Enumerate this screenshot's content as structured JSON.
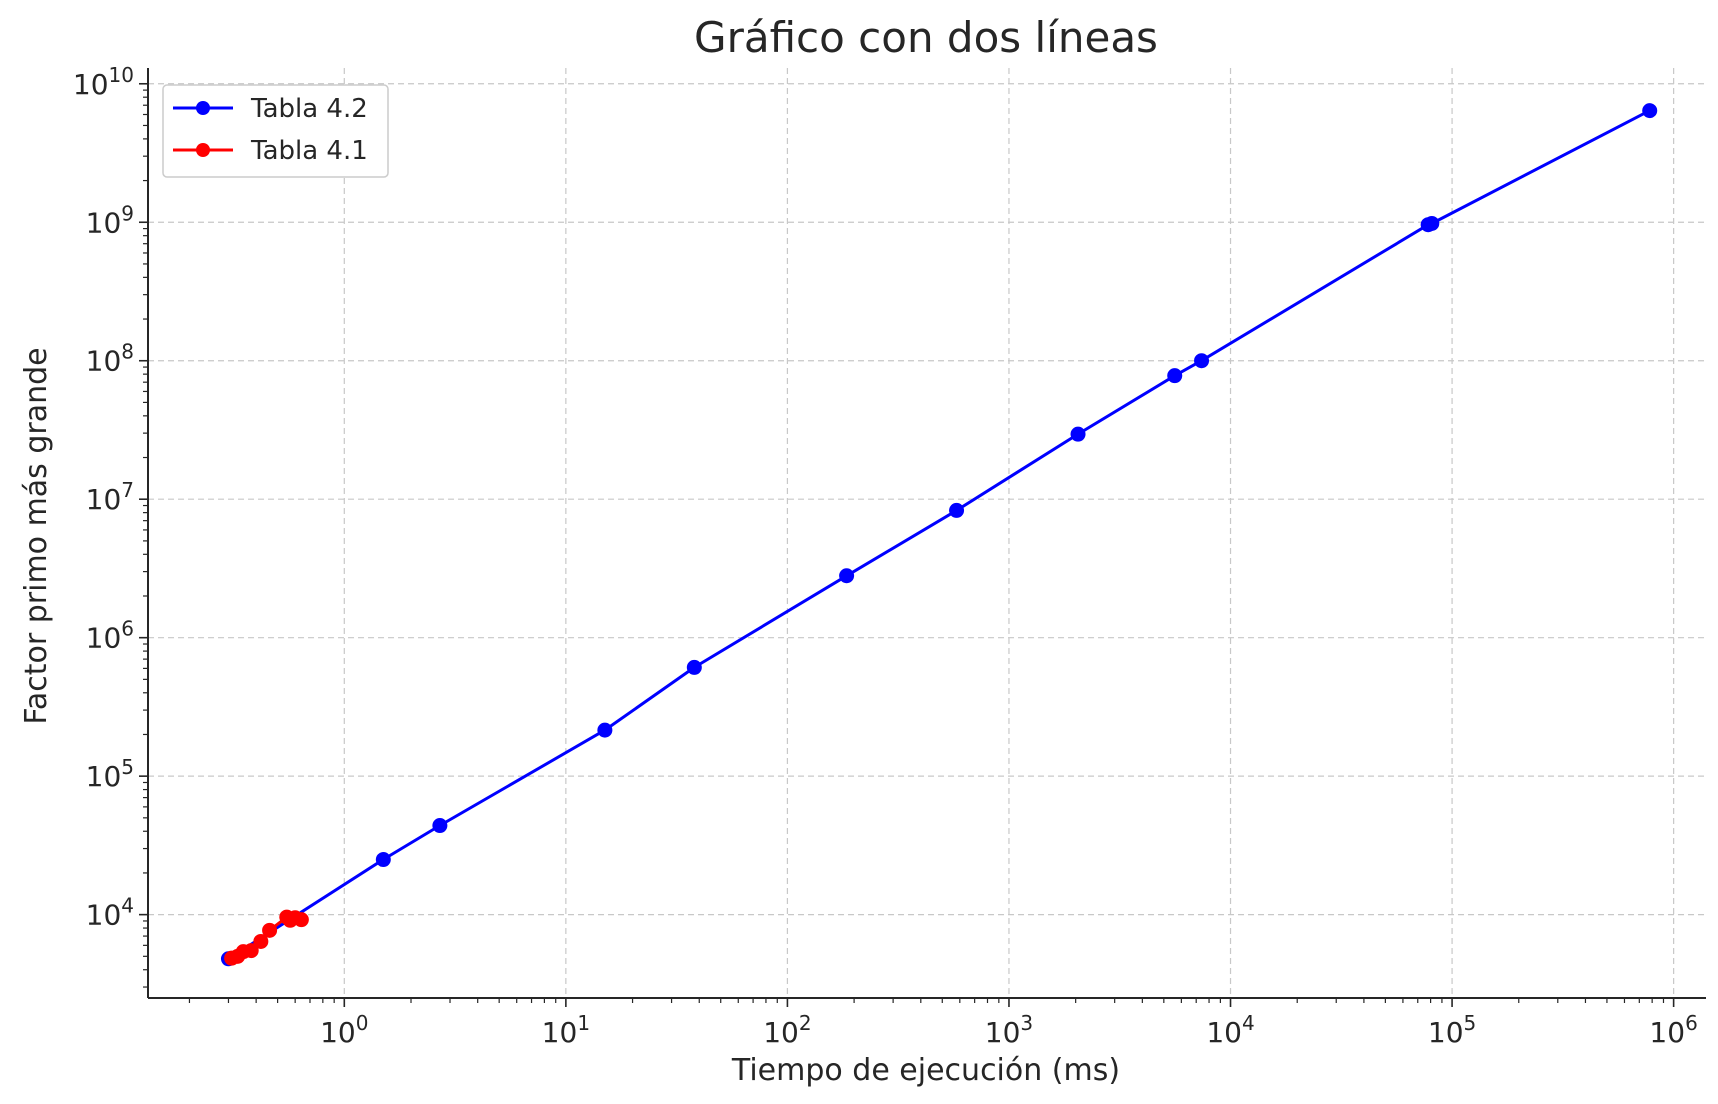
{
  "chart_data": {
    "type": "line",
    "title": "Gráfico con dos líneas",
    "xlabel": "Tiempo de ejecución (ms)",
    "ylabel": "Factor primo más grande",
    "xscale": "log",
    "yscale": "log",
    "xlim": [
      0.13,
      1400000
    ],
    "ylim": [
      2500,
      13000000000
    ],
    "xticks": [
      {
        "value": 1,
        "base": "10",
        "exp": "0"
      },
      {
        "value": 10,
        "base": "10",
        "exp": "1"
      },
      {
        "value": 100,
        "base": "10",
        "exp": "2"
      },
      {
        "value": 1000,
        "base": "10",
        "exp": "3"
      },
      {
        "value": 10000,
        "base": "10",
        "exp": "4"
      },
      {
        "value": 100000,
        "base": "10",
        "exp": "5"
      },
      {
        "value": 1000000,
        "base": "10",
        "exp": "6"
      }
    ],
    "yticks": [
      {
        "value": 10000,
        "base": "10",
        "exp": "4"
      },
      {
        "value": 100000,
        "base": "10",
        "exp": "5"
      },
      {
        "value": 1000000,
        "base": "10",
        "exp": "6"
      },
      {
        "value": 10000000,
        "base": "10",
        "exp": "7"
      },
      {
        "value": 100000000,
        "base": "10",
        "exp": "8"
      },
      {
        "value": 1000000000,
        "base": "10",
        "exp": "9"
      },
      {
        "value": 10000000000,
        "base": "10",
        "exp": "10"
      }
    ],
    "grid": true,
    "legend_position": "top-left",
    "series": [
      {
        "name": "Tabla 4.2",
        "color": "#0000ff",
        "points": [
          [
            0.3,
            4800
          ],
          [
            1.5,
            25000
          ],
          [
            2.7,
            44000
          ],
          [
            15,
            215000
          ],
          [
            38,
            610000
          ],
          [
            185,
            2800000
          ],
          [
            580,
            8300000
          ],
          [
            2050,
            29500000
          ],
          [
            5600,
            78000000
          ],
          [
            7400,
            100000000
          ],
          [
            78000,
            960000000
          ],
          [
            81000,
            980000000
          ],
          [
            780000,
            6400000000
          ]
        ]
      },
      {
        "name": "Tabla 4.1",
        "color": "#ff0000",
        "points": [
          [
            0.31,
            4850
          ],
          [
            0.33,
            5000
          ],
          [
            0.35,
            5400
          ],
          [
            0.38,
            5500
          ],
          [
            0.42,
            6400
          ],
          [
            0.46,
            7700
          ],
          [
            0.55,
            9600
          ],
          [
            0.57,
            9100
          ],
          [
            0.6,
            9500
          ],
          [
            0.64,
            9200
          ]
        ]
      }
    ]
  }
}
